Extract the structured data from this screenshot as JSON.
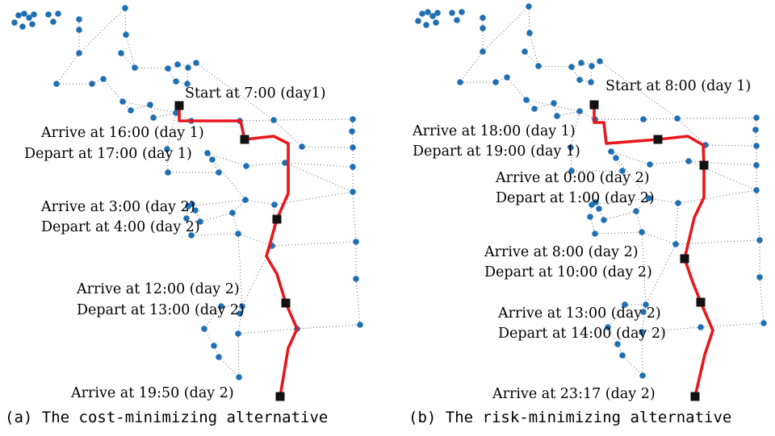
{
  "panels": [
    {
      "id": "a",
      "caption": "(a) The cost-minimizing alternative",
      "labels": [
        "Start at 7:00 (day1)",
        "Arrive at 16:00 (day 1)",
        "Depart at 17:00 (day 1)",
        "Arrive at 3:00 (day 2)",
        "Depart at 4:00 (day 2)",
        "Arrive at 12:00 (day 2)",
        "Depart at 13:00 (day 2)",
        "Arrive at 19:50 (day 2)"
      ]
    },
    {
      "id": "b",
      "caption": "(b) The risk-minimizing alternative",
      "labels": [
        "Start at 8:00 (day 1)",
        "Arrive at 18:00 (day 1)",
        "Depart at 19:00 (day 1)",
        "Arrive at 0:00 (day 2)",
        "Depart at 1:00 (day 2)",
        "Arrive at 8:00 (day 2)",
        "Depart at 10:00 (day 2)",
        "Arrive at 13:00 (day 2)",
        "Depart at 14:00 (day 2)",
        "Arrive at 23:17 (day 2)"
      ]
    }
  ],
  "colors": {
    "node": "#1f6fb4",
    "route": "#e8161b",
    "stop": "#111111",
    "edge": "#555555"
  }
}
